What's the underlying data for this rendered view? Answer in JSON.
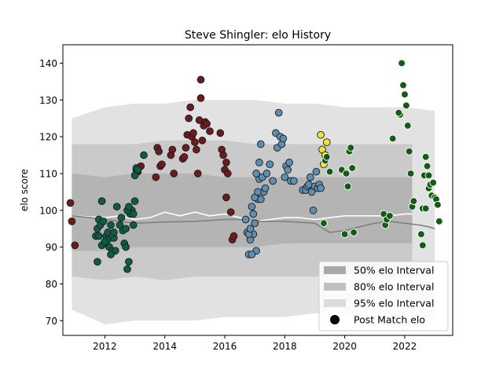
{
  "chart_data": {
    "type": "scatter",
    "title": "Steve Shingler: elo History",
    "xlabel": "",
    "ylabel": "elo score",
    "xlim": [
      2010.6,
      2023.6
    ],
    "ylim": [
      66,
      145
    ],
    "grid": false,
    "legend_position": "lower-right",
    "x_ticks": [
      2012,
      2014,
      2016,
      2018,
      2020,
      2022
    ],
    "y_ticks": [
      70,
      80,
      90,
      100,
      110,
      120,
      130,
      140
    ],
    "x_tick_labels": [
      "2012",
      "2014",
      "2016",
      "2018",
      "2020",
      "2022"
    ],
    "y_tick_labels": [
      "70",
      "80",
      "90",
      "100",
      "110",
      "120",
      "130",
      "140"
    ],
    "legend": [
      {
        "label": "50% elo Interval",
        "kind": "patch",
        "color": "#a9a9a9"
      },
      {
        "label": "80% elo Interval",
        "kind": "patch",
        "color": "#c0c0c0"
      },
      {
        "label": "95% elo Interval",
        "kind": "patch",
        "color": "#dcdcdc"
      },
      {
        "label": "Post Match elo",
        "kind": "marker",
        "color": "#000000"
      }
    ],
    "intervals": [
      {
        "name": "95% elo Interval",
        "color": "#e2e2e2",
        "x": [
          2010.9,
          2012.0,
          2013.0,
          2014.0,
          2015.0,
          2016.0,
          2017.0,
          2018.0,
          2019.0,
          2020.0,
          2021.0,
          2022.0,
          2023.0
        ],
        "lower": [
          73,
          69,
          70,
          70,
          70,
          71,
          71,
          71,
          72,
          72,
          72,
          71,
          71
        ],
        "upper": [
          125,
          128,
          129,
          129,
          130,
          130,
          130,
          129,
          129,
          128,
          128,
          128,
          127
        ]
      },
      {
        "name": "80% elo Interval",
        "color": "#cacaca",
        "x": [
          2010.9,
          2012.0,
          2013.0,
          2014.0,
          2015.0,
          2016.0,
          2017.0,
          2018.0,
          2019.0,
          2020.0,
          2021.0,
          2022.0,
          2022.25
        ],
        "lower": [
          82,
          81,
          82,
          81,
          82,
          82,
          82,
          82,
          82,
          83,
          82,
          82,
          82
        ],
        "upper": [
          118,
          118,
          118,
          119,
          119,
          119,
          118,
          118,
          118,
          118,
          118,
          118,
          118
        ]
      },
      {
        "name": "50% elo Interval",
        "color": "#b4b4b4",
        "x": [
          2010.9,
          2012.0,
          2013.0,
          2014.0,
          2015.0,
          2016.0,
          2017.0,
          2018.0,
          2019.0,
          2020.0,
          2021.0,
          2022.0,
          2022.25
        ],
        "lower": [
          89,
          89,
          90,
          90,
          90,
          90,
          90,
          91,
          91,
          91,
          91,
          91,
          91
        ],
        "upper": [
          110,
          109,
          110,
          110,
          110,
          109,
          109,
          109,
          109,
          109,
          109,
          109,
          109
        ]
      }
    ],
    "trend_lines": [
      {
        "color": "#ffffff",
        "x": [
          2010.9,
          2011.5,
          2012.0,
          2012.5,
          2013.0,
          2013.5,
          2014.0,
          2014.5,
          2015.0,
          2015.5,
          2016.0,
          2016.5,
          2017.0,
          2017.5,
          2018.0,
          2018.5,
          2019.0,
          2019.5,
          2020.0,
          2020.5,
          2021.0,
          2021.5,
          2022.0,
          2022.25
        ],
        "y": [
          98.5,
          98.2,
          98.0,
          98.5,
          97.5,
          98.0,
          99.5,
          98.5,
          99.5,
          98.5,
          99.0,
          98.0,
          97.0,
          97.5,
          98.0,
          98.0,
          97.5,
          98.0,
          98.5,
          98.5,
          98.5,
          98.5,
          99.0,
          99.0
        ]
      },
      {
        "color": "#808080",
        "x": [
          2010.9,
          2011.5,
          2012.0,
          2012.5,
          2013.0,
          2014.0,
          2015.0,
          2016.0,
          2016.8,
          2017.2,
          2018.0,
          2019.0,
          2019.5,
          2020.0,
          2020.5,
          2021.0,
          2021.5,
          2022.0,
          2022.5,
          2022.8,
          2023.0
        ],
        "y": [
          98.5,
          98.0,
          97.5,
          97.0,
          96.5,
          96.8,
          97.0,
          97.5,
          97.5,
          97.0,
          97.0,
          96.5,
          94.0,
          94.5,
          95.5,
          96.5,
          97.0,
          96.5,
          96.0,
          95.5,
          95.0
        ]
      }
    ],
    "series": [
      {
        "color": "#6b1c1e",
        "x": [
          2010.85,
          2010.9,
          2011.0,
          2015.2,
          2016.05,
          2016.2,
          2016.25,
          2016.3
        ],
        "y": [
          102,
          97,
          90.5,
          135.5,
          103.5,
          99.5,
          92,
          93
        ]
      },
      {
        "color": "#0f5c45",
        "x": [
          2011.7,
          2011.75,
          2011.8,
          2011.85,
          2011.9,
          2011.95,
          2012.0,
          2012.05,
          2012.1,
          2012.15,
          2012.2,
          2012.25,
          2012.3,
          2012.35,
          2012.4,
          2012.5,
          2012.55,
          2012.6,
          2012.65,
          2012.7,
          2012.75,
          2012.8,
          2012.85,
          2012.9,
          2012.95,
          2013.0,
          2011.75,
          2011.8,
          2011.9,
          2012.0,
          2012.1,
          2012.2,
          2012.3,
          2012.7,
          2012.75,
          2012.8
        ],
        "y": [
          93,
          95,
          97.5,
          96,
          102.5,
          97,
          91,
          93,
          92,
          90,
          96,
          89,
          92.5,
          89,
          101,
          96,
          98,
          94.5,
          91,
          90,
          84,
          86,
          99,
          100,
          99,
          102.5,
          86,
          93,
          90.5,
          91.5,
          94,
          88,
          94,
          95,
          100,
          101
        ]
      },
      {
        "color": "#6b1c1e",
        "x": [
          2013.05,
          2013.1,
          2013.2,
          2013.7,
          2013.75,
          2013.8,
          2013.85,
          2013.9,
          2014.2,
          2014.25,
          2014.3,
          2014.6,
          2014.65,
          2014.7,
          2014.75,
          2014.8,
          2014.85,
          2014.9,
          2014.95,
          2015.0,
          2015.05,
          2015.1,
          2015.15,
          2015.2,
          2015.25,
          2015.3,
          2015.35,
          2015.4,
          2015.5,
          2015.85,
          2015.9,
          2015.95,
          2016.0,
          2016.05,
          2016.1
        ],
        "y": [
          111,
          110.5,
          112,
          109,
          117,
          116,
          112,
          112.5,
          115,
          116.5,
          110,
          114,
          114.5,
          117,
          120.5,
          125,
          128,
          120,
          121,
          118.5,
          116.5,
          110,
          124.5,
          130.5,
          119,
          123,
          124,
          123.5,
          121.5,
          121,
          116.5,
          115,
          111,
          113,
          110
        ]
      },
      {
        "color": "#0f5c45",
        "x": [
          2012.95,
          2013.0,
          2013.05,
          2013.1,
          2013.3
        ],
        "y": [
          96,
          109.5,
          111.5,
          111,
          115
        ]
      },
      {
        "color": "#5f8fb0",
        "x": [
          2016.7,
          2016.75,
          2016.8,
          2016.85,
          2016.9,
          2016.95,
          2017.0,
          2017.05,
          2017.1,
          2017.15,
          2017.2,
          2017.25,
          2017.3,
          2017.35,
          2017.4,
          2017.5,
          2017.6,
          2017.7,
          2017.75,
          2017.8,
          2017.85,
          2017.9,
          2017.95,
          2018.0,
          2018.05,
          2018.1,
          2018.15,
          2018.2,
          2018.3,
          2018.6,
          2018.7,
          2018.75,
          2018.8,
          2018.85,
          2018.9,
          2018.95,
          2019.0,
          2019.05,
          2019.1,
          2019.15,
          2019.2,
          2016.8,
          2016.9,
          2017.0,
          2017.1,
          2017.2,
          2016.85,
          2016.95,
          2017.05,
          2017.15
        ],
        "y": [
          97.5,
          94,
          88,
          92,
          101,
          93.5,
          96.5,
          89,
          103,
          108.5,
          103,
          109,
          105,
          106,
          110,
          112.5,
          108,
          121,
          117,
          126.5,
          120,
          118,
          119.5,
          109,
          112,
          111,
          113,
          108,
          108,
          105.5,
          105.5,
          106.5,
          107,
          109,
          105,
          100,
          106.5,
          110.5,
          106,
          107,
          106,
          93.5,
          88,
          103.5,
          105,
          118,
          95,
          99,
          110,
          113
        ]
      },
      {
        "color": "#e8e336",
        "x": [
          2019.2,
          2019.25,
          2019.3,
          2019.35,
          2019.4
        ],
        "y": [
          120.5,
          116.5,
          112.5,
          115,
          118.5
        ]
      },
      {
        "color": "#145c15",
        "x": [
          2019.3,
          2019.35,
          2019.4,
          2019.5,
          2019.9,
          2020.0,
          2020.05,
          2020.1,
          2020.15,
          2020.2,
          2020.25,
          2020.3,
          2021.3,
          2021.35,
          2021.4,
          2021.5,
          2021.6,
          2021.9,
          2021.95,
          2022.0,
          2022.05,
          2022.1,
          2022.15,
          2022.2,
          2022.25,
          2022.3,
          2022.6,
          2022.65,
          2022.7,
          2022.75,
          2022.8,
          2022.85,
          2022.9,
          2022.95,
          2023.0,
          2023.05,
          2023.1,
          2023.15,
          2022.55,
          2022.6,
          2022.7,
          2022.8,
          2021.85,
          2021.8
        ],
        "y": [
          96.5,
          113.5,
          114.5,
          110.5,
          111,
          93.5,
          110,
          106.5,
          116,
          117,
          111.5,
          94,
          99,
          96,
          97.5,
          98.5,
          119.5,
          140,
          134,
          131.5,
          128.5,
          123,
          116,
          110,
          101,
          102.5,
          100.5,
          109.5,
          114.5,
          112,
          106,
          107,
          104,
          107.5,
          103.5,
          103,
          101.5,
          97,
          93.5,
          90.5,
          100.5,
          109.5,
          126,
          126.5
        ]
      }
    ]
  }
}
